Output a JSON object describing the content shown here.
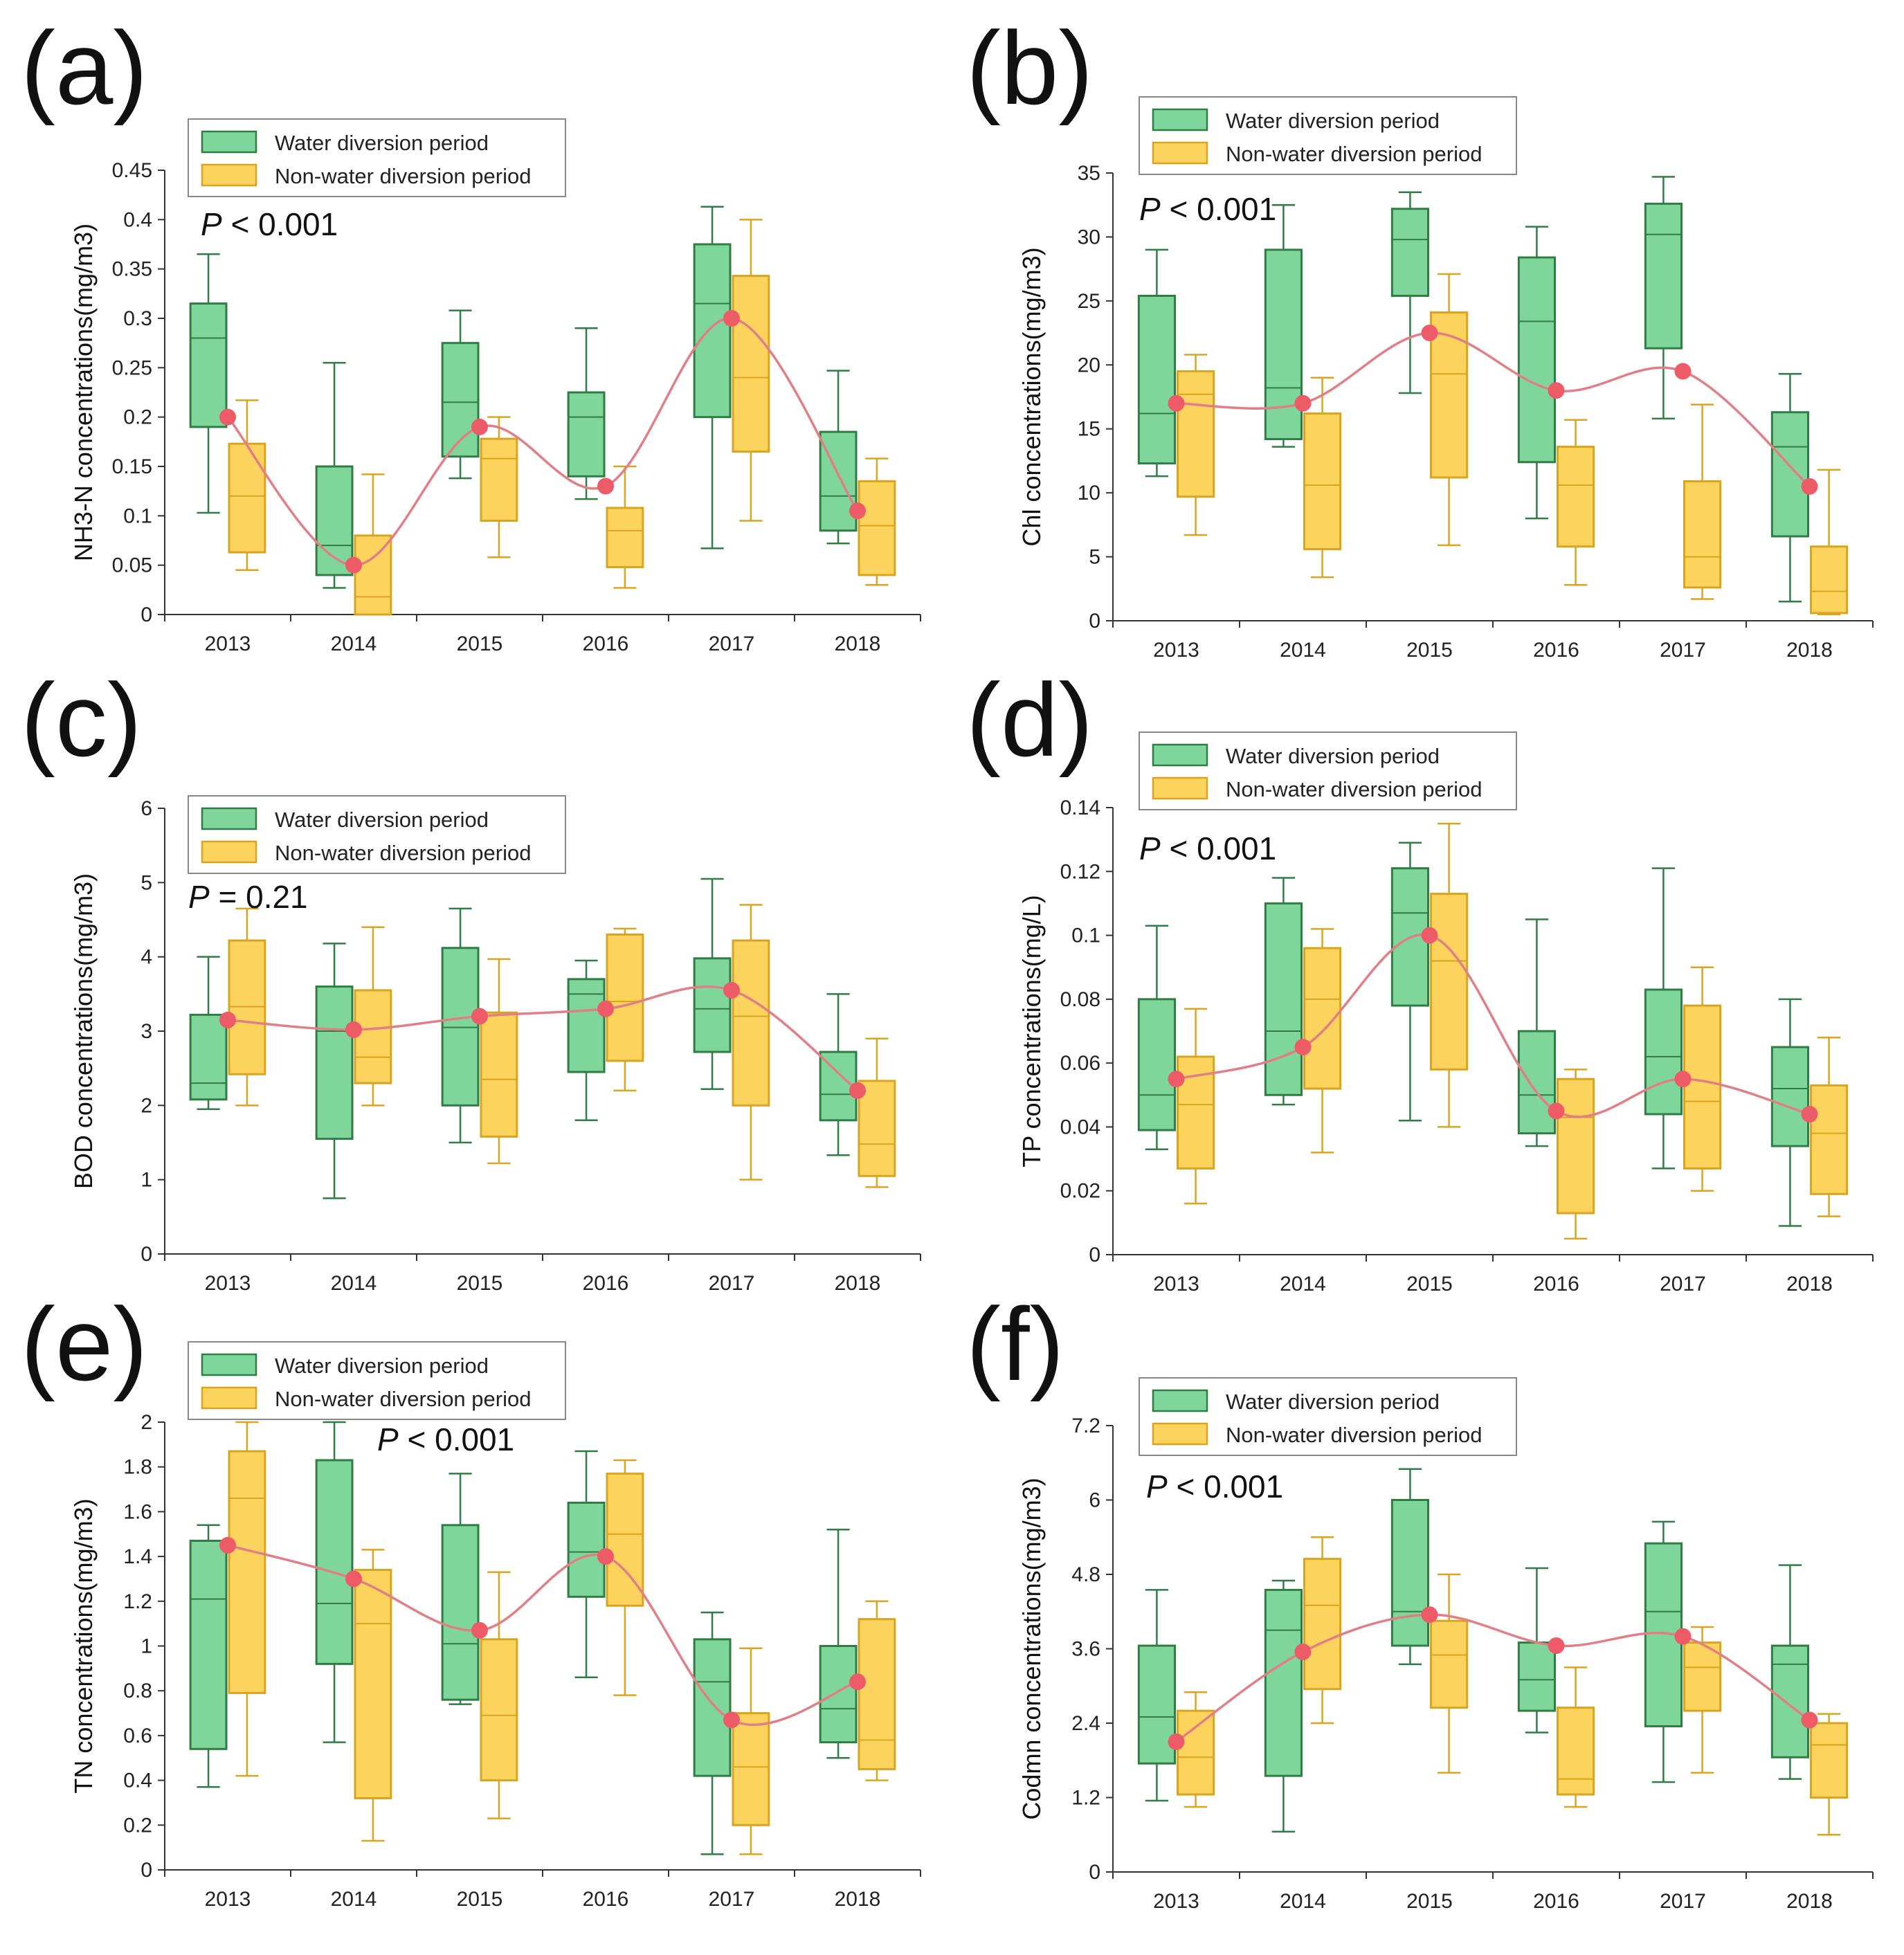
{
  "colors": {
    "water_fill": "#7ed69b",
    "water_stroke": "#2f7d45",
    "nonwater_fill": "#fcd35c",
    "nonwater_stroke": "#d9a520",
    "mean_line": "#e07f86",
    "mean_dot": "#ee5b68",
    "axis": "#333333"
  },
  "legend": {
    "water": "Water diversion period",
    "nonwater": "Non-water diversion period"
  },
  "chart_data": [
    {
      "panel": "(a)",
      "type": "box",
      "ylabel": "NH3-N  concentrations(mg/m3)",
      "ylim": [
        0,
        0.45
      ],
      "yticks": [
        "0",
        "0.05",
        "0.1",
        "0.15",
        "0.2",
        "0.25",
        "0.3",
        "0.35",
        "0.4",
        "0.45"
      ],
      "pvalue": {
        "italic": "P",
        "rest": " < 0.001"
      },
      "categories": [
        "2013",
        "2014",
        "2015",
        "2016",
        "2017",
        "2018"
      ],
      "water": [
        {
          "min": 0.103,
          "q1": 0.19,
          "median": 0.28,
          "q3": 0.315,
          "max": 0.365
        },
        {
          "min": 0.027,
          "q1": 0.04,
          "median": 0.07,
          "q3": 0.15,
          "max": 0.255
        },
        {
          "min": 0.138,
          "q1": 0.16,
          "median": 0.215,
          "q3": 0.275,
          "max": 0.308
        },
        {
          "min": 0.117,
          "q1": 0.14,
          "median": 0.2,
          "q3": 0.225,
          "max": 0.29
        },
        {
          "min": 0.067,
          "q1": 0.2,
          "median": 0.315,
          "q3": 0.375,
          "max": 0.413
        },
        {
          "min": 0.072,
          "q1": 0.085,
          "median": 0.12,
          "q3": 0.185,
          "max": 0.247
        }
      ],
      "nonwater": [
        {
          "min": 0.045,
          "q1": 0.063,
          "median": 0.12,
          "q3": 0.173,
          "max": 0.217
        },
        {
          "min": 0.0,
          "q1": 0.0,
          "median": 0.018,
          "q3": 0.08,
          "max": 0.142
        },
        {
          "min": 0.058,
          "q1": 0.095,
          "median": 0.158,
          "q3": 0.178,
          "max": 0.2
        },
        {
          "min": 0.027,
          "q1": 0.048,
          "median": 0.085,
          "q3": 0.108,
          "max": 0.15
        },
        {
          "min": 0.095,
          "q1": 0.165,
          "median": 0.24,
          "q3": 0.343,
          "max": 0.4
        },
        {
          "min": 0.03,
          "q1": 0.04,
          "median": 0.09,
          "q3": 0.135,
          "max": 0.158
        }
      ],
      "means": [
        0.2,
        0.05,
        0.19,
        0.13,
        0.3,
        0.105
      ]
    },
    {
      "panel": "(b)",
      "type": "box",
      "ylabel": "Chl concentrations(mg/m3)",
      "ylim": [
        0,
        35
      ],
      "yticks": [
        "0",
        "5",
        "10",
        "15",
        "20",
        "25",
        "30",
        "35"
      ],
      "pvalue": {
        "italic": "P",
        "rest": " < 0.001"
      },
      "categories": [
        "2013",
        "2014",
        "2015",
        "2016",
        "2017",
        "2018"
      ],
      "water": [
        {
          "min": 11.3,
          "q1": 12.3,
          "median": 16.2,
          "q3": 25.4,
          "max": 29.0
        },
        {
          "min": 13.6,
          "q1": 14.2,
          "median": 18.2,
          "q3": 29.0,
          "max": 32.5
        },
        {
          "min": 17.8,
          "q1": 25.4,
          "median": 29.8,
          "q3": 32.2,
          "max": 33.5
        },
        {
          "min": 8.0,
          "q1": 12.4,
          "median": 23.4,
          "q3": 28.4,
          "max": 30.8
        },
        {
          "min": 15.8,
          "q1": 21.3,
          "median": 30.2,
          "q3": 32.6,
          "max": 34.7
        },
        {
          "min": 1.5,
          "q1": 6.6,
          "median": 13.6,
          "q3": 16.3,
          "max": 19.3
        }
      ],
      "nonwater": [
        {
          "min": 6.7,
          "q1": 9.7,
          "median": 17.7,
          "q3": 19.5,
          "max": 20.8
        },
        {
          "min": 3.4,
          "q1": 5.6,
          "median": 10.6,
          "q3": 16.2,
          "max": 19.0
        },
        {
          "min": 5.9,
          "q1": 11.2,
          "median": 19.3,
          "q3": 24.1,
          "max": 27.1
        },
        {
          "min": 2.8,
          "q1": 5.8,
          "median": 10.6,
          "q3": 13.6,
          "max": 15.7
        },
        {
          "min": 1.7,
          "q1": 2.6,
          "median": 5.0,
          "q3": 10.9,
          "max": 16.9
        },
        {
          "min": 0.5,
          "q1": 0.6,
          "median": 2.3,
          "q3": 5.8,
          "max": 11.8
        }
      ],
      "means": [
        17.0,
        17.0,
        22.5,
        18.0,
        19.5,
        10.5
      ]
    },
    {
      "panel": "(c)",
      "type": "box",
      "ylabel": "BOD concentrations(mg/m3)",
      "ylim": [
        0,
        6
      ],
      "yticks": [
        "0",
        "1",
        "2",
        "3",
        "4",
        "5",
        "6"
      ],
      "pvalue": {
        "italic": "P",
        "rest": " = 0.21"
      },
      "categories": [
        "2013",
        "2014",
        "2015",
        "2016",
        "2017",
        "2018"
      ],
      "water": [
        {
          "min": 1.95,
          "q1": 2.08,
          "median": 2.3,
          "q3": 3.22,
          "max": 4.0
        },
        {
          "min": 0.75,
          "q1": 1.55,
          "median": 3.0,
          "q3": 3.6,
          "max": 4.18
        },
        {
          "min": 1.5,
          "q1": 2.0,
          "median": 3.05,
          "q3": 4.12,
          "max": 4.65
        },
        {
          "min": 1.8,
          "q1": 2.45,
          "median": 3.5,
          "q3": 3.7,
          "max": 3.95
        },
        {
          "min": 2.22,
          "q1": 2.72,
          "median": 3.3,
          "q3": 3.98,
          "max": 5.05
        },
        {
          "min": 1.33,
          "q1": 1.8,
          "median": 2.15,
          "q3": 2.72,
          "max": 3.5
        }
      ],
      "nonwater": [
        {
          "min": 2.0,
          "q1": 2.42,
          "median": 3.33,
          "q3": 4.22,
          "max": 4.65
        },
        {
          "min": 2.0,
          "q1": 2.3,
          "median": 2.65,
          "q3": 3.55,
          "max": 4.4
        },
        {
          "min": 1.22,
          "q1": 1.58,
          "median": 2.35,
          "q3": 3.25,
          "max": 3.97
        },
        {
          "min": 2.2,
          "q1": 2.6,
          "median": 3.4,
          "q3": 4.3,
          "max": 4.38
        },
        {
          "min": 1.0,
          "q1": 2.0,
          "median": 3.2,
          "q3": 4.22,
          "max": 4.7
        },
        {
          "min": 0.9,
          "q1": 1.05,
          "median": 1.48,
          "q3": 2.33,
          "max": 2.9
        }
      ],
      "means": [
        3.15,
        3.02,
        3.2,
        3.3,
        3.55,
        2.2
      ]
    },
    {
      "panel": "(d)",
      "type": "box",
      "ylabel": "TP concentrations(mg/L)",
      "ylim": [
        0,
        0.14
      ],
      "yticks": [
        "0",
        "0.02",
        "0.04",
        "0.06",
        "0.08",
        "0.1",
        "0.12",
        "0.14"
      ],
      "pvalue": {
        "italic": "P",
        "rest": " < 0.001"
      },
      "categories": [
        "2013",
        "2014",
        "2015",
        "2016",
        "2017",
        "2018"
      ],
      "water": [
        {
          "min": 0.033,
          "q1": 0.039,
          "median": 0.05,
          "q3": 0.08,
          "max": 0.103
        },
        {
          "min": 0.047,
          "q1": 0.05,
          "median": 0.07,
          "q3": 0.11,
          "max": 0.118
        },
        {
          "min": 0.042,
          "q1": 0.078,
          "median": 0.107,
          "q3": 0.121,
          "max": 0.129
        },
        {
          "min": 0.034,
          "q1": 0.038,
          "median": 0.05,
          "q3": 0.07,
          "max": 0.105
        },
        {
          "min": 0.027,
          "q1": 0.044,
          "median": 0.062,
          "q3": 0.083,
          "max": 0.121
        },
        {
          "min": 0.009,
          "q1": 0.034,
          "median": 0.052,
          "q3": 0.065,
          "max": 0.08
        }
      ],
      "nonwater": [
        {
          "min": 0.016,
          "q1": 0.027,
          "median": 0.047,
          "q3": 0.062,
          "max": 0.077
        },
        {
          "min": 0.032,
          "q1": 0.052,
          "median": 0.08,
          "q3": 0.096,
          "max": 0.102
        },
        {
          "min": 0.04,
          "q1": 0.058,
          "median": 0.092,
          "q3": 0.113,
          "max": 0.135
        },
        {
          "min": 0.005,
          "q1": 0.013,
          "median": 0.043,
          "q3": 0.055,
          "max": 0.058
        },
        {
          "min": 0.02,
          "q1": 0.027,
          "median": 0.048,
          "q3": 0.078,
          "max": 0.09
        },
        {
          "min": 0.012,
          "q1": 0.019,
          "median": 0.038,
          "q3": 0.053,
          "max": 0.068
        }
      ],
      "means": [
        0.055,
        0.065,
        0.1,
        0.045,
        0.055,
        0.044
      ]
    },
    {
      "panel": "(e)",
      "type": "box",
      "ylabel": "TN concentrations(mg/m3)",
      "ylim": [
        0,
        2
      ],
      "yticks": [
        "0",
        "0.2",
        "0.4",
        "0.6",
        "0.8",
        "1",
        "1.2",
        "1.4",
        "1.6",
        "1.8",
        "2"
      ],
      "pvalue": {
        "italic": "P",
        "rest": " < 0.001"
      },
      "categories": [
        "2013",
        "2014",
        "2015",
        "2016",
        "2017",
        "2018"
      ],
      "water": [
        {
          "min": 0.37,
          "q1": 0.54,
          "median": 1.21,
          "q3": 1.47,
          "max": 1.54
        },
        {
          "min": 0.57,
          "q1": 0.92,
          "median": 1.19,
          "q3": 1.83,
          "max": 2.0
        },
        {
          "min": 0.74,
          "q1": 0.76,
          "median": 1.01,
          "q3": 1.54,
          "max": 1.77
        },
        {
          "min": 0.86,
          "q1": 1.22,
          "median": 1.42,
          "q3": 1.64,
          "max": 1.87
        },
        {
          "min": 0.07,
          "q1": 0.42,
          "median": 0.84,
          "q3": 1.03,
          "max": 1.15
        },
        {
          "min": 0.5,
          "q1": 0.57,
          "median": 0.72,
          "q3": 1.0,
          "max": 1.52
        }
      ],
      "nonwater": [
        {
          "min": 0.42,
          "q1": 0.79,
          "median": 1.66,
          "q3": 1.87,
          "max": 2.0
        },
        {
          "min": 0.13,
          "q1": 0.32,
          "median": 1.1,
          "q3": 1.34,
          "max": 1.43
        },
        {
          "min": 0.23,
          "q1": 0.4,
          "median": 0.69,
          "q3": 1.03,
          "max": 1.33
        },
        {
          "min": 0.78,
          "q1": 1.18,
          "median": 1.5,
          "q3": 1.77,
          "max": 1.83
        },
        {
          "min": 0.07,
          "q1": 0.2,
          "median": 0.46,
          "q3": 0.7,
          "max": 0.99
        },
        {
          "min": 0.4,
          "q1": 0.45,
          "median": 0.58,
          "q3": 1.12,
          "max": 1.2
        }
      ],
      "means": [
        1.45,
        1.3,
        1.07,
        1.4,
        0.67,
        0.84
      ]
    },
    {
      "panel": "(f)",
      "type": "box",
      "ylabel": "Codmn concentrations(mg/m3)",
      "ylim": [
        0,
        7.2
      ],
      "yticks": [
        "0",
        "1.2",
        "2.4",
        "3.6",
        "4.8",
        "6",
        "7.2"
      ],
      "pvalue": {
        "italic": "P",
        "rest": " < 0.001"
      },
      "categories": [
        "2013",
        "2014",
        "2015",
        "2016",
        "2017",
        "2018"
      ],
      "water": [
        {
          "min": 1.15,
          "q1": 1.75,
          "median": 2.5,
          "q3": 3.65,
          "max": 4.55
        },
        {
          "min": 0.65,
          "q1": 1.55,
          "median": 3.9,
          "q3": 4.55,
          "max": 4.7
        },
        {
          "min": 3.35,
          "q1": 3.65,
          "median": 4.2,
          "q3": 6.0,
          "max": 6.5
        },
        {
          "min": 2.25,
          "q1": 2.6,
          "median": 3.1,
          "q3": 3.7,
          "max": 4.9
        },
        {
          "min": 1.45,
          "q1": 2.35,
          "median": 4.2,
          "q3": 5.3,
          "max": 5.65
        },
        {
          "min": 1.5,
          "q1": 1.85,
          "median": 3.35,
          "q3": 3.65,
          "max": 4.95
        }
      ],
      "nonwater": [
        {
          "min": 1.05,
          "q1": 1.25,
          "median": 1.85,
          "q3": 2.6,
          "max": 2.9
        },
        {
          "min": 2.4,
          "q1": 2.95,
          "median": 4.3,
          "q3": 5.05,
          "max": 5.4
        },
        {
          "min": 1.6,
          "q1": 2.65,
          "median": 3.5,
          "q3": 4.05,
          "max": 4.8
        },
        {
          "min": 1.05,
          "q1": 1.25,
          "median": 1.5,
          "q3": 2.65,
          "max": 3.3
        },
        {
          "min": 1.6,
          "q1": 2.6,
          "median": 3.3,
          "q3": 3.7,
          "max": 3.95
        },
        {
          "min": 0.6,
          "q1": 1.2,
          "median": 2.05,
          "q3": 2.4,
          "max": 2.55
        }
      ],
      "means": [
        2.1,
        3.55,
        4.15,
        3.65,
        3.8,
        2.45
      ]
    }
  ]
}
